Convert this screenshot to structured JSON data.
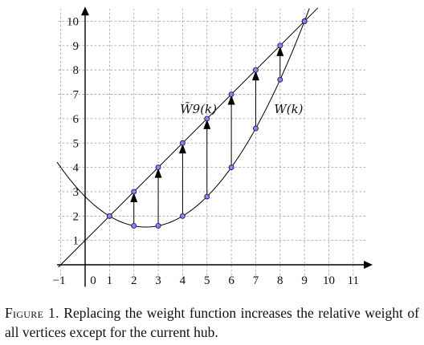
{
  "chart_data": {
    "type": "line",
    "title": "",
    "xlabel": "",
    "ylabel": "",
    "xlim": [
      -1,
      11.8
    ],
    "ylim": [
      -0.9,
      10.6
    ],
    "grid": true,
    "x_ticks": [
      "−1",
      "0",
      "1",
      "2",
      "3",
      "4",
      "5",
      "6",
      "7",
      "8",
      "9",
      "10",
      "11"
    ],
    "y_ticks": [
      "1",
      "2",
      "3",
      "4",
      "5",
      "6",
      "7",
      "8",
      "9",
      "10"
    ],
    "series": [
      {
        "name": "W̃9(k)",
        "kind": "line",
        "x": [
          1,
          2,
          3,
          4,
          5,
          6,
          7,
          8,
          9
        ],
        "y": [
          2,
          3,
          4,
          5,
          6,
          7,
          8,
          9,
          10
        ]
      },
      {
        "name": "W(k)",
        "kind": "parabola",
        "x": [
          1,
          2,
          3,
          4,
          5,
          6,
          7,
          8,
          9
        ],
        "y": [
          2,
          1.6,
          1.6,
          2.0,
          2.8,
          4.0,
          5.6,
          7.6,
          10.0
        ]
      }
    ],
    "arrows": [
      {
        "x": 2,
        "from": 1.6,
        "to": 3
      },
      {
        "x": 3,
        "from": 1.6,
        "to": 4
      },
      {
        "x": 4,
        "from": 2.0,
        "to": 5
      },
      {
        "x": 5,
        "from": 2.8,
        "to": 6
      },
      {
        "x": 6,
        "from": 4.0,
        "to": 7
      },
      {
        "x": 7,
        "from": 5.6,
        "to": 8
      },
      {
        "x": 8,
        "from": 7.6,
        "to": 9
      }
    ],
    "annotations": [
      {
        "text": "W̃9(k)",
        "x": 4.65,
        "y": 6.4
      },
      {
        "text": "W(k)",
        "x": 8.35,
        "y": 6.4
      }
    ]
  },
  "caption": {
    "label": "Figure 1.",
    "text": " Replacing the weight function increases the relative weight of all vertices except for the current hub."
  }
}
